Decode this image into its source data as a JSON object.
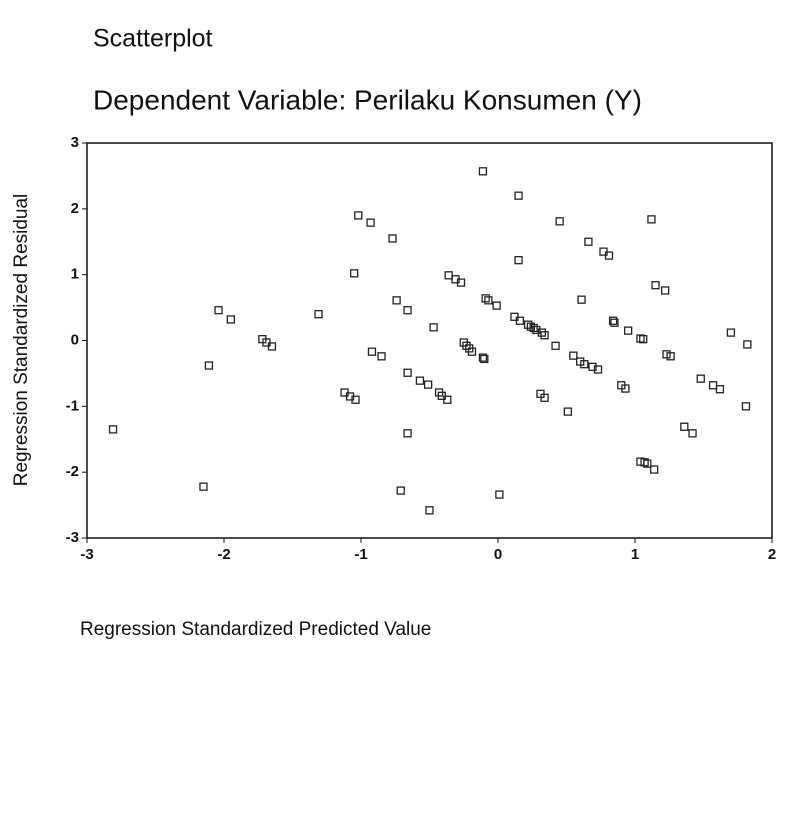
{
  "chart_data": {
    "type": "scatter",
    "title": "Scatterplot",
    "subtitle": "Dependent Variable: Perilaku Konsumen (Y)",
    "x_label": "Regression Standardized Predicted Value",
    "y_label": "Regression Standardized Residual",
    "xlim": [
      -3,
      2
    ],
    "ylim": [
      -3,
      3
    ],
    "xticks": [
      -3,
      -2,
      -1,
      0,
      1,
      2
    ],
    "yticks": [
      -3,
      -2,
      -1,
      0,
      1,
      2,
      3
    ],
    "color": "#222222",
    "x": [
      -2.81,
      -2.15,
      -2.11,
      -2.04,
      -1.95,
      -1.72,
      -1.69,
      -1.65,
      -1.31,
      -1.12,
      -1.08,
      -1.04,
      -1.05,
      -1.02,
      -0.93,
      -0.92,
      -0.85,
      -0.77,
      -0.74,
      -0.71,
      -0.66,
      -0.66,
      -0.66,
      -0.57,
      -0.51,
      -0.5,
      -0.47,
      -0.43,
      -0.41,
      -0.37,
      -0.36,
      -0.31,
      -0.27,
      -0.25,
      -0.23,
      -0.21,
      -0.19,
      -0.11,
      -0.11,
      -0.09,
      -0.07,
      -0.1,
      -0.01,
      0.01,
      0.12,
      0.15,
      0.15,
      0.16,
      0.22,
      0.24,
      0.26,
      0.28,
      0.32,
      0.34,
      0.42,
      0.31,
      0.34,
      0.45,
      0.51,
      0.55,
      0.61,
      0.6,
      0.63,
      0.66,
      0.69,
      0.73,
      0.77,
      0.81,
      0.84,
      0.85,
      0.9,
      0.93,
      0.95,
      1.04,
      1.06,
      1.04,
      1.07,
      1.09,
      1.12,
      1.14,
      1.15,
      1.22,
      1.23,
      1.26,
      1.36,
      1.42,
      1.48,
      1.57,
      1.62,
      1.7,
      1.81,
      1.82
    ],
    "values": [
      -1.35,
      -2.22,
      -0.38,
      0.46,
      0.32,
      0.02,
      -0.03,
      -0.09,
      0.4,
      -0.79,
      -0.85,
      -0.9,
      1.02,
      1.9,
      1.79,
      -0.17,
      -0.24,
      1.55,
      0.61,
      -2.28,
      0.46,
      -0.49,
      -1.41,
      -0.61,
      -0.67,
      -2.58,
      0.2,
      -0.79,
      -0.84,
      -0.9,
      0.99,
      0.93,
      0.88,
      -0.03,
      -0.08,
      -0.12,
      -0.17,
      2.57,
      -0.26,
      0.64,
      0.61,
      -0.28,
      0.53,
      -2.34,
      0.36,
      2.2,
      1.22,
      0.3,
      0.24,
      0.21,
      0.19,
      0.16,
      0.12,
      0.08,
      -0.08,
      -0.81,
      -0.87,
      1.81,
      -1.08,
      -0.23,
      0.62,
      -0.32,
      -0.36,
      1.5,
      -0.4,
      -0.44,
      1.35,
      1.29,
      0.3,
      0.27,
      -0.68,
      -0.73,
      0.15,
      0.03,
      0.02,
      -1.84,
      -1.85,
      -1.87,
      1.84,
      -1.96,
      0.84,
      0.76,
      -0.21,
      -0.24,
      -1.31,
      -1.41,
      -0.58,
      -0.68,
      -0.74,
      0.12,
      -1.0,
      -0.06
    ]
  }
}
